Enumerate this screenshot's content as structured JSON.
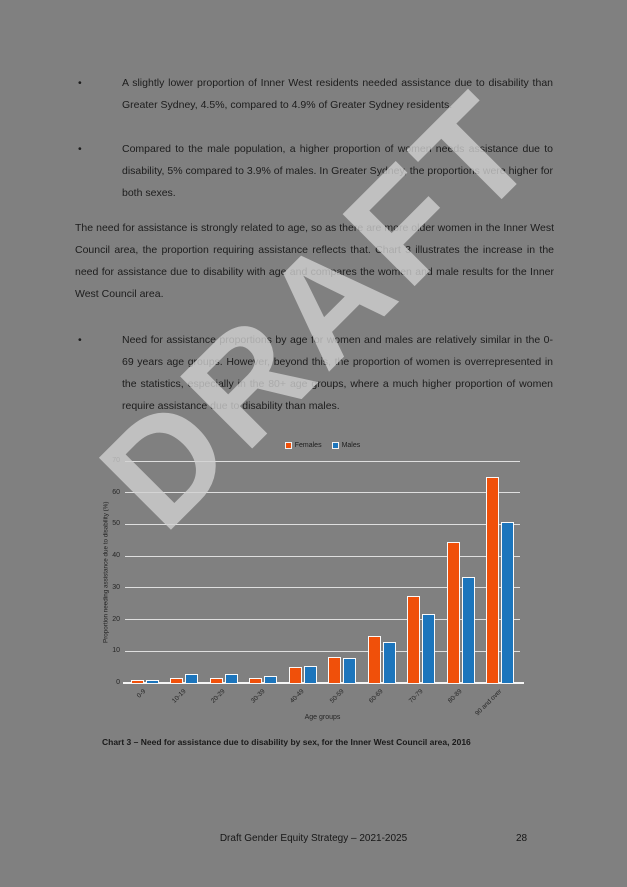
{
  "page": {
    "background_color": "#808080",
    "watermark": "DRAFT",
    "watermark_color": "#d2d2d2",
    "bullets_top": [
      "A slightly lower proportion of Inner West residents needed assistance due to disability than Greater Sydney, 4.5%, compared to 4.9% of Greater Sydney residents.",
      "Compared to the male population, a higher proportion of women needs assistance due to disability, 5% compared to 3.9% of males. In Greater Sydney, the proportions were higher for both sexes."
    ],
    "paragraph": "The need for assistance is strongly related to age, so as there are more older women in the Inner West Council area, the proportion requiring assistance reflects that. Chart 3 illustrates the increase in the need for assistance due to disability with age and compares the women and male results for the Inner West Council area.",
    "bullets_bottom": [
      "Need for assistance proportions by age for women and males are relatively similar in the 0-69 years age groups. However, beyond this, the proportion of women is overrepresented in the statistics, especially in the 80+ age groups, where a much higher proportion of women require assistance due to disability than males."
    ],
    "bullet_glyph": "•",
    "caption": "Chart 3 – Need for assistance due to disability by sex, for the Inner West Council area, 2016",
    "footer": {
      "title": "Draft Gender Equity Strategy – 2021-2025",
      "page_number": "28"
    }
  },
  "chart_data": {
    "type": "bar",
    "title": "",
    "categories": [
      "0-9",
      "10-19",
      "20-29",
      "30-39",
      "40-49",
      "50-59",
      "60-69",
      "70-79",
      "80-89",
      "90 and over"
    ],
    "series": [
      {
        "name": "Females",
        "color": "#f0500a",
        "values": [
          0.9,
          1.6,
          1.5,
          1.7,
          5.1,
          8.3,
          14.9,
          27.5,
          44.6,
          64.9
        ]
      },
      {
        "name": "Males",
        "color": "#1c75bc",
        "values": [
          0.8,
          2.8,
          2.8,
          2.1,
          5.5,
          7.8,
          12.8,
          21.7,
          33.3,
          50.9
        ]
      }
    ],
    "xlabel": "Age groups",
    "ylabel": "Proportion needing assistance due to disability (%)",
    "ylim": [
      0,
      70
    ],
    "ytick_step": 10,
    "grid": true,
    "legend_position": "top",
    "gridline_color": "rgba(255,255,255,0.75)"
  }
}
